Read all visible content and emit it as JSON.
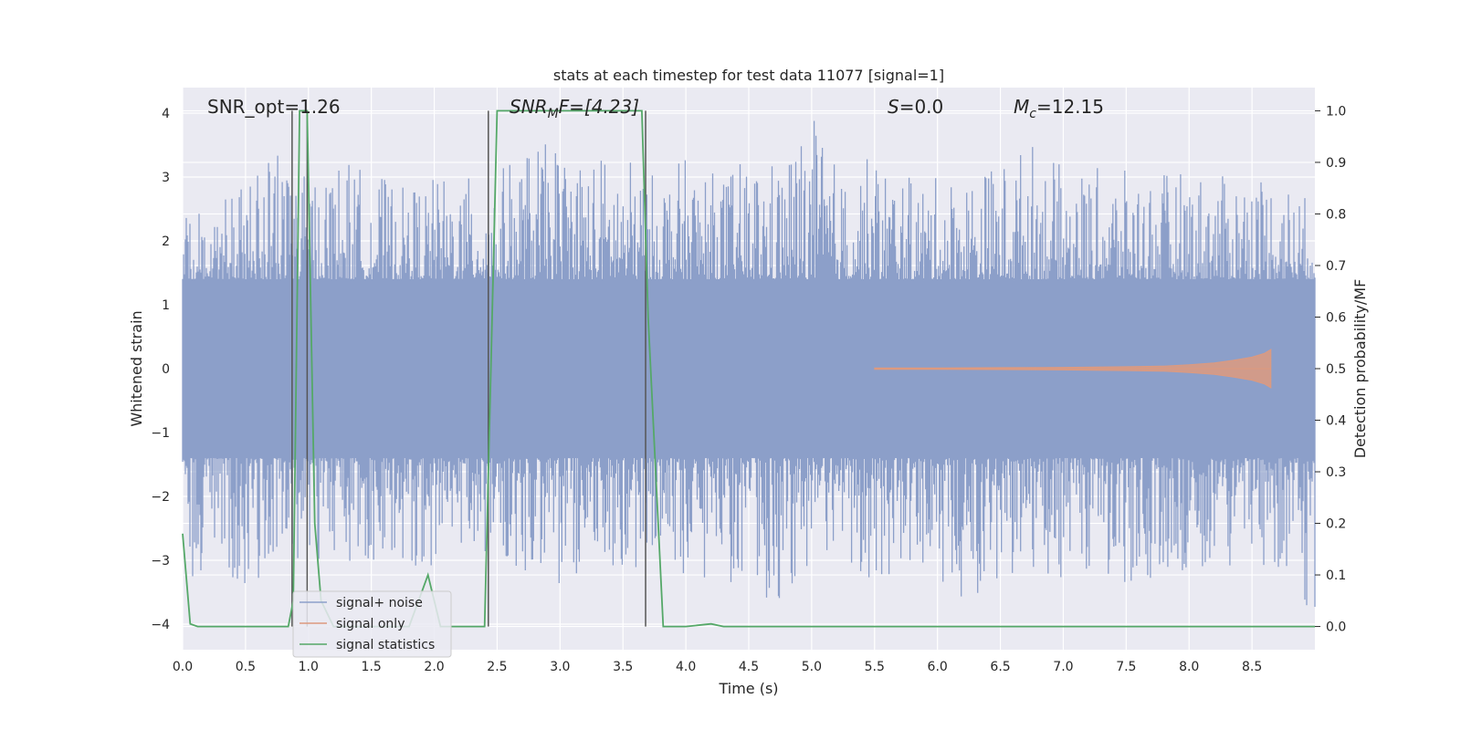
{
  "chart_data": {
    "type": "line",
    "title": "stats at each timestep for test data 11077 [signal=1]",
    "xlabel": "Time (s)",
    "ylabel": "Whitened strain",
    "y2label": "Detection probability/MF",
    "xlim": [
      0,
      9.0
    ],
    "ylim": [
      -4.4,
      4.4
    ],
    "y2lim": [
      -0.045,
      1.045
    ],
    "xticks": [
      0.0,
      0.5,
      1.0,
      1.5,
      2.0,
      2.5,
      3.0,
      3.5,
      4.0,
      4.5,
      5.0,
      5.5,
      6.0,
      6.5,
      7.0,
      7.5,
      8.0,
      8.5
    ],
    "xtick_labels": [
      "0.0",
      "0.5",
      "1.0",
      "1.5",
      "2.0",
      "2.5",
      "3.0",
      "3.5",
      "4.0",
      "4.5",
      "5.0",
      "5.5",
      "6.0",
      "6.5",
      "7.0",
      "7.5",
      "8.0",
      "8.5"
    ],
    "yticks": [
      -4,
      -3,
      -2,
      -1,
      0,
      1,
      2,
      3,
      4
    ],
    "ytick_labels": [
      "−4",
      "−3",
      "−2",
      "−1",
      "0",
      "1",
      "2",
      "3",
      "4"
    ],
    "y2ticks": [
      0.0,
      0.1,
      0.2,
      0.3,
      0.4,
      0.5,
      0.6,
      0.7,
      0.8,
      0.9,
      1.0
    ],
    "y2tick_labels": [
      "0.0",
      "0.1",
      "0.2",
      "0.3",
      "0.4",
      "0.5",
      "0.6",
      "0.7",
      "0.8",
      "0.9",
      "1.0"
    ],
    "grid": true,
    "legend_position": "lower-left",
    "annotations": {
      "snr_opt": "SNR_opt=1.26",
      "snr_mf_base": "SNR",
      "snr_mf_sub": "M",
      "snr_mf_rest": "F=[4.23]",
      "s_italic": "S",
      "s_rest": "=0.0",
      "mc_base": "M",
      "mc_sub": "c",
      "mc_rest": "=12.15"
    },
    "vertical_lines_x": [
      0.87,
      0.99,
      2.43,
      3.68
    ],
    "series": [
      {
        "name": "signal+ noise",
        "color": "#8c9fc9",
        "envelope": {
          "x": [
            0.0,
            0.25,
            0.5,
            0.75,
            1.0,
            1.25,
            1.5,
            1.75,
            2.0,
            2.25,
            2.5,
            2.75,
            3.0,
            3.25,
            3.5,
            3.75,
            4.0,
            4.25,
            4.5,
            4.75,
            5.0,
            5.25,
            5.5,
            5.75,
            6.0,
            6.25,
            6.5,
            6.75,
            7.0,
            7.25,
            7.5,
            7.75,
            8.0,
            8.25,
            8.5,
            8.75,
            9.0
          ],
          "upper": [
            2.6,
            2.5,
            3.25,
            3.35,
            3.0,
            3.3,
            3.1,
            2.85,
            3.0,
            3.0,
            3.1,
            3.5,
            3.55,
            3.4,
            3.35,
            3.05,
            3.3,
            3.05,
            3.3,
            3.3,
            4.0,
            3.0,
            3.4,
            3.0,
            3.0,
            3.1,
            3.25,
            3.6,
            3.15,
            3.15,
            3.1,
            3.05,
            3.15,
            3.0,
            3.2,
            3.0,
            2.6
          ],
          "lower": [
            -3.4,
            -3.0,
            -3.5,
            -3.0,
            -3.0,
            -3.1,
            -3.0,
            -3.1,
            -3.1,
            -2.7,
            -3.0,
            -3.25,
            -3.75,
            -3.15,
            -3.25,
            -3.15,
            -3.3,
            -3.3,
            -3.5,
            -3.65,
            -3.55,
            -3.35,
            -3.3,
            -3.2,
            -3.35,
            -3.65,
            -3.3,
            -3.2,
            -3.3,
            -3.25,
            -3.65,
            -3.2,
            -3.15,
            -3.2,
            -3.0,
            -3.2,
            -4.0
          ]
        }
      },
      {
        "name": "signal only",
        "color": "#dd9a7f",
        "x": [
          5.5,
          6.0,
          6.5,
          7.0,
          7.5,
          7.8,
          8.0,
          8.2,
          8.35,
          8.5,
          8.6,
          8.65
        ],
        "amplitude": [
          0.01,
          0.01,
          0.015,
          0.02,
          0.03,
          0.04,
          0.06,
          0.09,
          0.13,
          0.18,
          0.24,
          0.3
        ]
      },
      {
        "name": "signal statistics",
        "color": "#55a868",
        "x": [
          0.0,
          0.06,
          0.12,
          0.84,
          0.88,
          0.93,
          0.99,
          1.05,
          1.1,
          1.2,
          1.8,
          1.95,
          2.05,
          2.4,
          2.45,
          2.5,
          3.65,
          3.7,
          3.82,
          4.0,
          4.2,
          4.3,
          8.95,
          9.0
        ],
        "y": [
          0.18,
          0.005,
          0.0,
          0.0,
          0.05,
          1.0,
          1.0,
          0.2,
          0.05,
          0.0,
          0.0,
          0.1,
          0.0,
          0.0,
          0.5,
          1.0,
          1.0,
          0.6,
          0.0,
          0.0,
          0.005,
          0.0,
          0.0,
          0.0
        ]
      }
    ]
  }
}
